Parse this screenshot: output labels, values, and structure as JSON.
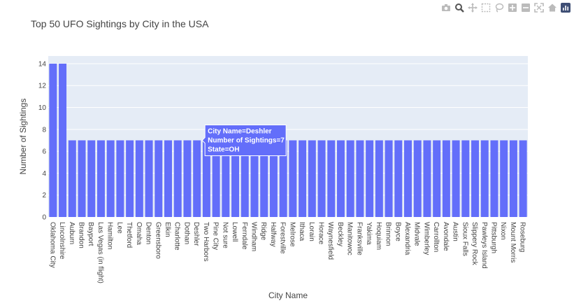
{
  "modebar": {
    "buttons": [
      {
        "name": "camera-icon",
        "title": "Download plot as a png"
      },
      {
        "name": "zoom-icon",
        "title": "Zoom"
      },
      {
        "name": "pan-icon",
        "title": "Pan"
      },
      {
        "name": "box-select-icon",
        "title": "Box Select"
      },
      {
        "name": "lasso-select-icon",
        "title": "Lasso Select"
      },
      {
        "name": "zoom-in-icon",
        "title": "Zoom in"
      },
      {
        "name": "zoom-out-icon",
        "title": "Zoom out"
      },
      {
        "name": "autoscale-icon",
        "title": "Autoscale"
      },
      {
        "name": "reset-axes-icon",
        "title": "Reset axes"
      },
      {
        "name": "plotly-logo-icon",
        "title": "Produced with Plotly"
      }
    ]
  },
  "chart_data": {
    "type": "bar",
    "title": "Top 50 UFO Sightings by City in the USA",
    "xlabel": "City Name",
    "ylabel": "Number of Sightings",
    "ylim": [
      0,
      14.7
    ],
    "yticks": [
      "0",
      "2",
      "4",
      "6",
      "8",
      "10",
      "12",
      "14"
    ],
    "grid": true,
    "colors": {
      "bar": "#636efa",
      "plot_bg": "#e5ecf6",
      "grid": "#ffffff",
      "hover_bg": "#636efa"
    },
    "categories": [
      "Oklahoma City",
      "Lincolnshire",
      "Auburn",
      "Brandon",
      "Bayport",
      "Las Vegas (in flight)",
      "Hamilton",
      "Lee",
      "Thetford",
      "Omaha",
      "Denton",
      "Greensboro",
      "Elkin",
      "Charlotte",
      "Dothan",
      "Deshler",
      "Two Harbors",
      "Pine City",
      "Not sure",
      "Lowell",
      "Ferndale",
      "Windham",
      "Ridge",
      "Halfway",
      "Forestville",
      "Melrose",
      "Ithaca",
      "Lorain",
      "Horace",
      "Waynesfield",
      "Beckley",
      "Manitowoc",
      "Franksville",
      "Yakima",
      "Hoquiam",
      "Brinnon",
      "Boyce",
      "Alexandria",
      "Midvale",
      "Wimberley",
      "Carrollton",
      "Avondale",
      "Austin",
      "Sioux Falls",
      "Slippery Rock",
      "Pawleys Island",
      "Pittsburgh",
      "Nixon",
      "Mount Morris",
      "Roseburg"
    ],
    "values": [
      14,
      14,
      7,
      7,
      7,
      7,
      7,
      7,
      7,
      7,
      7,
      7,
      7,
      7,
      7,
      7,
      7,
      7,
      7,
      7,
      7,
      7,
      7,
      7,
      7,
      7,
      7,
      7,
      7,
      7,
      7,
      7,
      7,
      7,
      7,
      7,
      7,
      7,
      7,
      7,
      7,
      7,
      7,
      7,
      7,
      7,
      7,
      7,
      7,
      7
    ],
    "hover": {
      "index": 15,
      "lines": [
        "City Name=Deshler",
        "Number of Sightings=7",
        "State=OH"
      ]
    }
  }
}
